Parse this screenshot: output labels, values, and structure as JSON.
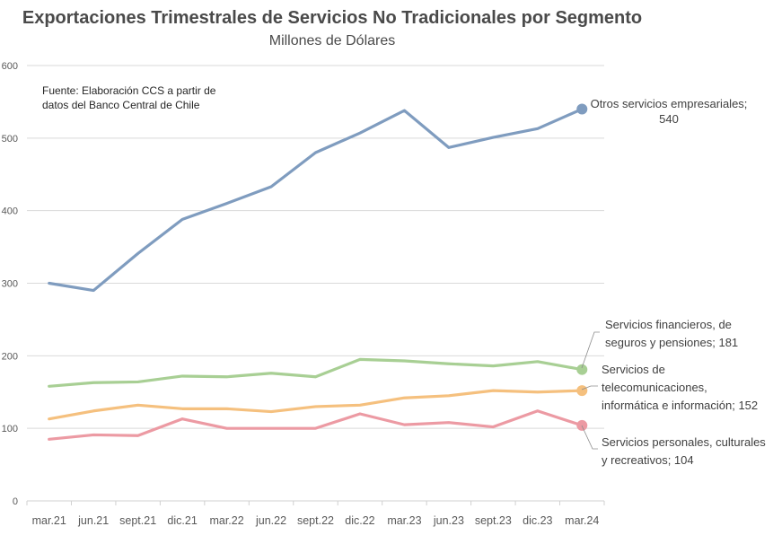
{
  "chart_data": {
    "type": "line",
    "title": "Exportaciones Trimestrales de Servicios No Tradicionales por Segmento",
    "subtitle": "Millones de Dólares",
    "source_note": [
      "Fuente: Elaboración CCS a partir de",
      "datos del Banco Central de Chile"
    ],
    "xlabel": "",
    "ylabel": "",
    "ylim": [
      0,
      600
    ],
    "yticks": [
      0,
      100,
      200,
      300,
      400,
      500,
      600
    ],
    "grid": true,
    "categories": [
      "mar.21",
      "jun.21",
      "sept.21",
      "dic.21",
      "mar.22",
      "jun.22",
      "sept.22",
      "dic.22",
      "mar.23",
      "jun.23",
      "sept.23",
      "dic.23",
      "mar.24"
    ],
    "series": [
      {
        "name": "Otros servicios empresariales",
        "color": "#7f9cbf",
        "values": [
          300,
          290,
          341,
          388,
          410,
          433,
          480,
          507,
          538,
          487,
          501,
          513,
          540
        ],
        "end_label": [
          "Otros servicios empresariales;",
          "540"
        ]
      },
      {
        "name": "Servicios financieros, de seguros y pensiones",
        "color": "#a8cf94",
        "values": [
          158,
          163,
          164,
          172,
          171,
          176,
          171,
          195,
          193,
          189,
          186,
          192,
          181
        ],
        "end_label": [
          "Servicios financieros, de",
          "seguros y pensiones; 181"
        ]
      },
      {
        "name": "Servicios de telecomunicaciones, informática e información",
        "color": "#f5c07e",
        "values": [
          113,
          124,
          132,
          127,
          127,
          123,
          130,
          132,
          142,
          145,
          152,
          150,
          152
        ],
        "end_label": [
          "Servicios de",
          "telecomunicaciones,",
          "informática e información; 152"
        ]
      },
      {
        "name": "Servicios personales, culturales y recreativos",
        "color": "#ec9aa3",
        "values": [
          85,
          91,
          90,
          113,
          100,
          100,
          100,
          120,
          105,
          108,
          102,
          124,
          104
        ],
        "end_label": [
          "Servicios personales, culturales",
          "y recreativos; 104"
        ]
      }
    ]
  }
}
